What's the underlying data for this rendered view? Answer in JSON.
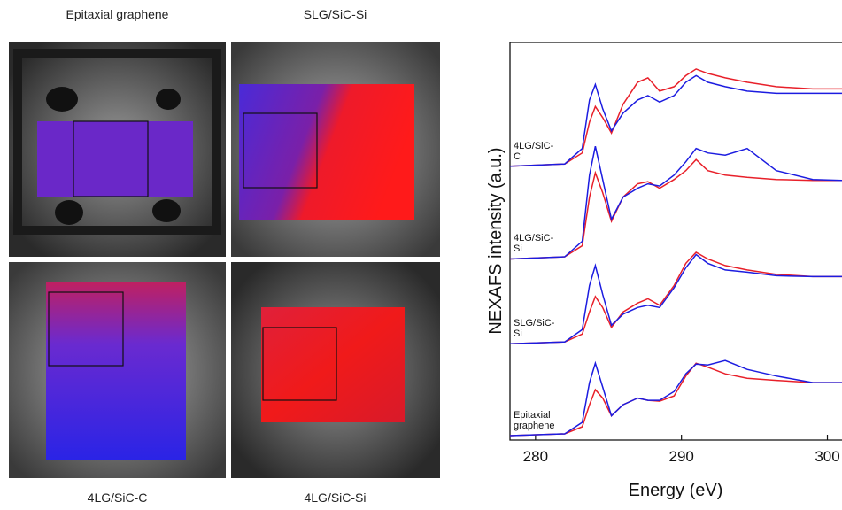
{
  "images": [
    {
      "label": "Epitaxial graphene"
    },
    {
      "label": "SLG/SiC-Si"
    },
    {
      "label": "4LG/SiC-C"
    },
    {
      "label": "4LG/SiC-Si"
    }
  ],
  "chart_data": {
    "type": "line",
    "xlabel": "Energy (eV)",
    "ylabel": "NEXAFS intensity (a.u.)",
    "xlim": [
      278.25,
      301
    ],
    "xticks": [
      280,
      290,
      300
    ],
    "ylim": [
      0,
      9
    ],
    "x": [
      278.25,
      282,
      283.2,
      283.7,
      284.1,
      284.6,
      285.2,
      286,
      287,
      287.7,
      288.5,
      289.5,
      290.3,
      291,
      291.8,
      293,
      294.5,
      296.5,
      299,
      301
    ],
    "spectra": [
      {
        "label": "4LG/SiC-C",
        "series": [
          {
            "color": "#e8202a",
            "values": [
              6.2,
              6.25,
              6.5,
              7.2,
              7.55,
              7.3,
              6.95,
              7.6,
              8.1,
              8.2,
              7.9,
              8.0,
              8.25,
              8.4,
              8.3,
              8.2,
              8.1,
              8.0,
              7.95,
              7.95
            ]
          },
          {
            "color": "#1c1ce0",
            "values": [
              6.2,
              6.25,
              6.6,
              7.7,
              8.05,
              7.5,
              7.0,
              7.4,
              7.7,
              7.8,
              7.65,
              7.8,
              8.1,
              8.25,
              8.1,
              8.0,
              7.9,
              7.85,
              7.85,
              7.85
            ]
          }
        ]
      },
      {
        "label": "4LG/SiC-Si",
        "series": [
          {
            "color": "#e8202a",
            "values": [
              4.1,
              4.15,
              4.4,
              5.5,
              6.05,
              5.6,
              4.95,
              5.5,
              5.8,
              5.85,
              5.7,
              5.9,
              6.1,
              6.35,
              6.1,
              6.0,
              5.95,
              5.9,
              5.88,
              5.88
            ]
          },
          {
            "color": "#1c1ce0",
            "values": [
              4.1,
              4.15,
              4.5,
              6.0,
              6.65,
              5.9,
              5.0,
              5.5,
              5.7,
              5.8,
              5.75,
              6.0,
              6.3,
              6.6,
              6.5,
              6.45,
              6.6,
              6.1,
              5.9,
              5.88
            ]
          }
        ]
      },
      {
        "label": "SLG/SiC-Si",
        "series": [
          {
            "color": "#e8202a",
            "values": [
              2.18,
              2.22,
              2.4,
              2.9,
              3.25,
              3.0,
              2.55,
              2.9,
              3.1,
              3.2,
              3.05,
              3.5,
              4.0,
              4.25,
              4.1,
              3.95,
              3.85,
              3.75,
              3.7,
              3.7
            ]
          },
          {
            "color": "#1c1ce0",
            "values": [
              2.18,
              2.22,
              2.5,
              3.5,
              3.95,
              3.3,
              2.6,
              2.85,
              3.0,
              3.05,
              3.0,
              3.45,
              3.9,
              4.2,
              4.0,
              3.85,
              3.8,
              3.72,
              3.7,
              3.7
            ]
          }
        ]
      },
      {
        "label": "Epitaxial graphene",
        "series": [
          {
            "color": "#e8202a",
            "values": [
              0.1,
              0.14,
              0.3,
              0.8,
              1.14,
              0.95,
              0.55,
              0.8,
              0.95,
              0.9,
              0.88,
              1.0,
              1.45,
              1.74,
              1.65,
              1.5,
              1.4,
              1.35,
              1.3,
              1.3
            ]
          },
          {
            "color": "#1c1ce0",
            "values": [
              0.1,
              0.14,
              0.4,
              1.3,
              1.74,
              1.2,
              0.55,
              0.8,
              0.95,
              0.9,
              0.9,
              1.1,
              1.5,
              1.72,
              1.7,
              1.8,
              1.6,
              1.45,
              1.3,
              1.3
            ]
          }
        ]
      }
    ]
  }
}
